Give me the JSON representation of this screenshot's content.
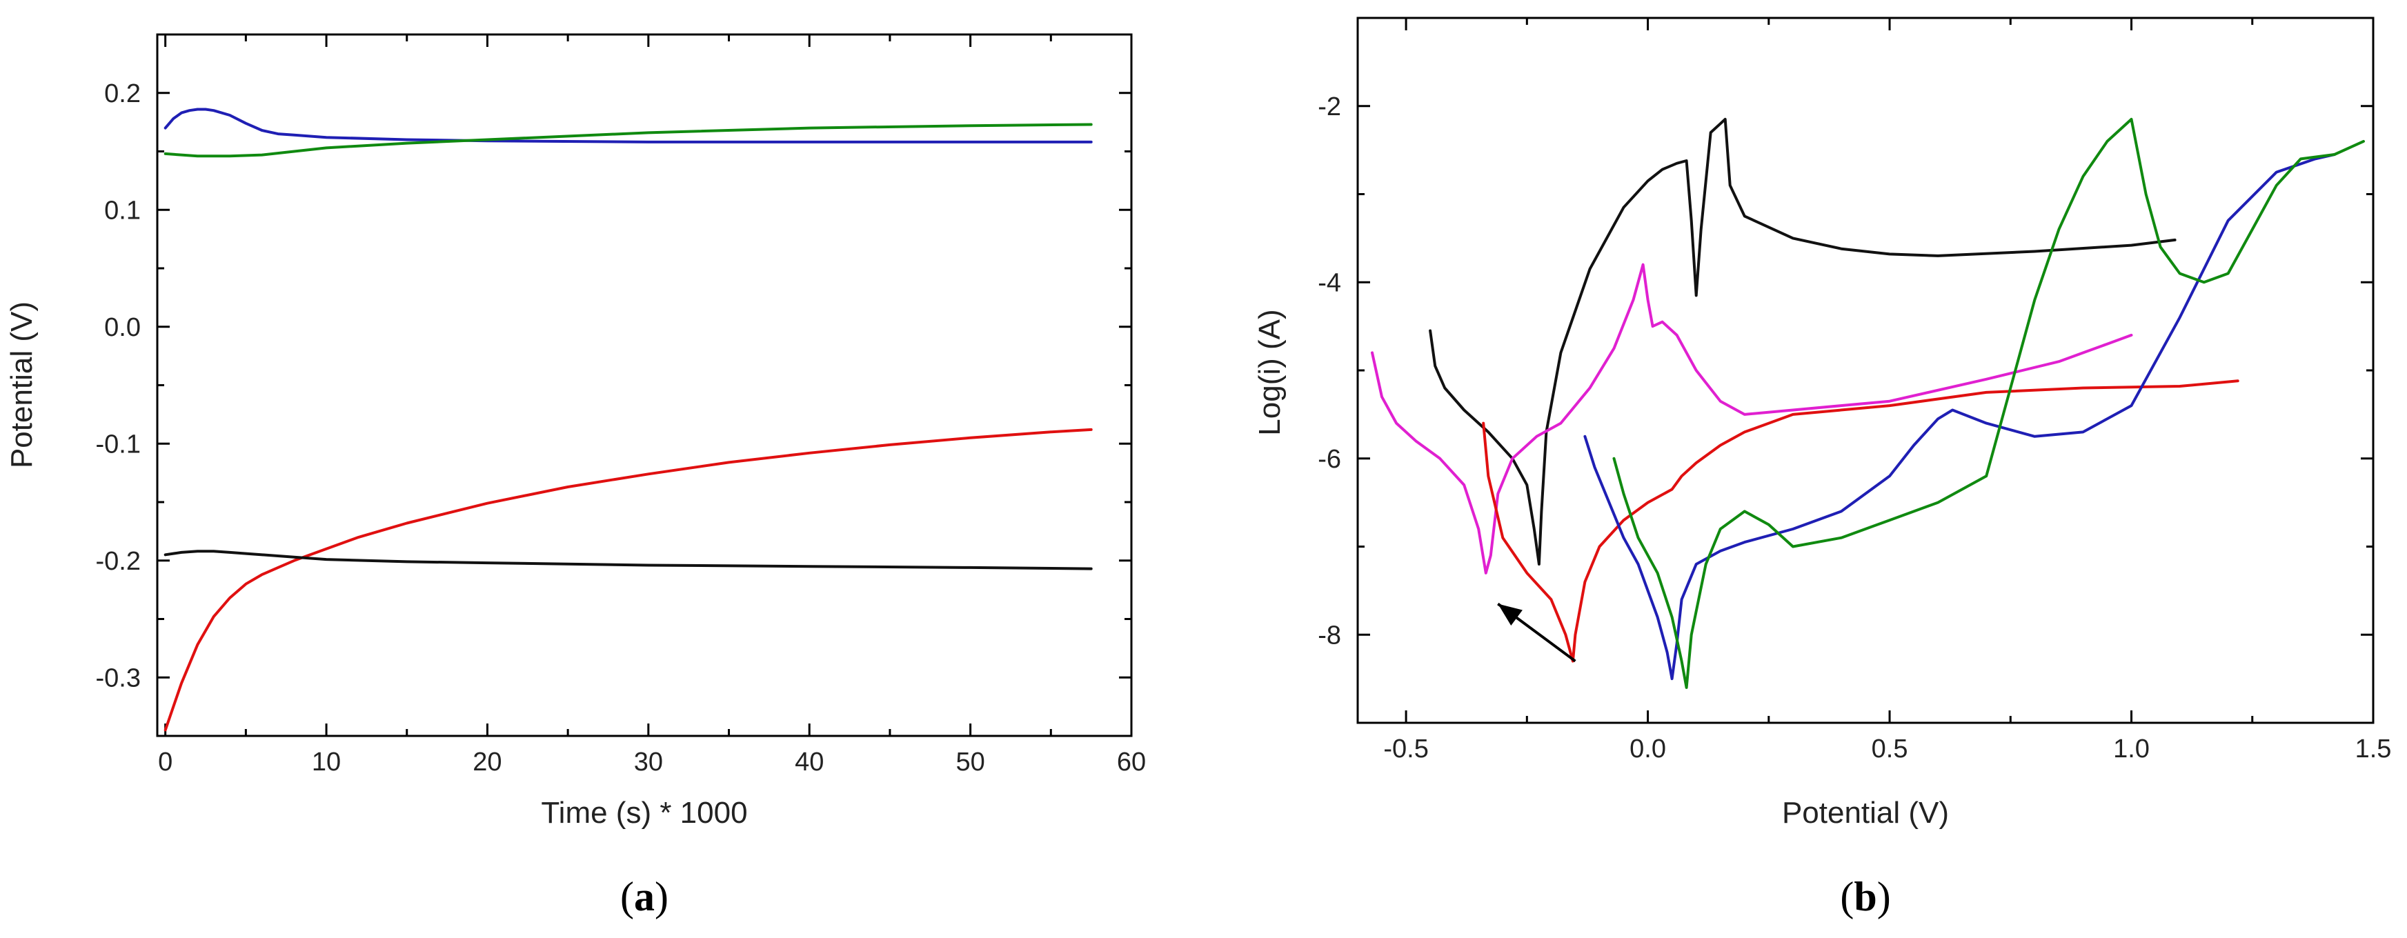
{
  "chart_data": [
    {
      "id": "a",
      "type": "line",
      "panel_label": "a",
      "xlabel": "Time (s) * 1000",
      "ylabel": "Potential (V)",
      "xlim": [
        -0.5,
        60
      ],
      "ylim": [
        -0.35,
        0.25
      ],
      "xticks": [
        0,
        10,
        20,
        30,
        40,
        50,
        60
      ],
      "xtick_labels": [
        "0",
        "10",
        "20",
        "30",
        "40",
        "50",
        "60"
      ],
      "yticks": [
        -0.3,
        -0.2,
        -0.1,
        0.0,
        0.1,
        0.2
      ],
      "ytick_labels": [
        "-0.3",
        "-0.2",
        "-0.1",
        "0.0",
        "0.1",
        "0.2"
      ],
      "series": [
        {
          "name": "blue",
          "color": "#1f1fb4",
          "x": [
            0,
            0.5,
            1,
            1.5,
            2,
            2.5,
            3,
            4,
            5,
            6,
            7,
            8,
            10,
            15,
            20,
            30,
            40,
            50,
            57.5
          ],
          "y": [
            0.17,
            0.178,
            0.183,
            0.185,
            0.186,
            0.186,
            0.185,
            0.181,
            0.174,
            0.168,
            0.165,
            0.164,
            0.162,
            0.16,
            0.159,
            0.158,
            0.158,
            0.158,
            0.158
          ]
        },
        {
          "name": "green",
          "color": "#108a10",
          "x": [
            0,
            2,
            4,
            6,
            8,
            10,
            15,
            20,
            30,
            40,
            50,
            57.5
          ],
          "y": [
            0.148,
            0.146,
            0.146,
            0.147,
            0.15,
            0.153,
            0.157,
            0.16,
            0.166,
            0.17,
            0.172,
            0.173
          ]
        },
        {
          "name": "red",
          "color": "#e01010",
          "x": [
            0,
            0.5,
            1,
            2,
            3,
            4,
            5,
            6,
            7,
            8,
            9,
            10,
            12,
            15,
            20,
            25,
            30,
            35,
            40,
            45,
            50,
            55,
            57.5
          ],
          "y": [
            -0.345,
            -0.325,
            -0.305,
            -0.272,
            -0.248,
            -0.232,
            -0.22,
            -0.212,
            -0.206,
            -0.2,
            -0.195,
            -0.19,
            -0.18,
            -0.168,
            -0.151,
            -0.137,
            -0.126,
            -0.116,
            -0.108,
            -0.101,
            -0.095,
            -0.09,
            -0.088
          ]
        },
        {
          "name": "black",
          "color": "#111111",
          "x": [
            0,
            1,
            2,
            3,
            4,
            5,
            8,
            10,
            15,
            20,
            30,
            40,
            50,
            57.5
          ],
          "y": [
            -0.195,
            -0.193,
            -0.192,
            -0.192,
            -0.193,
            -0.194,
            -0.197,
            -0.199,
            -0.201,
            -0.202,
            -0.204,
            -0.205,
            -0.206,
            -0.207
          ]
        }
      ]
    },
    {
      "id": "b",
      "type": "line",
      "panel_label": "b",
      "xlabel": "Potential (V)",
      "ylabel": "Log(i) (A)",
      "xlim": [
        -0.6,
        1.5
      ],
      "ylim": [
        -9,
        -1
      ],
      "xticks": [
        -0.5,
        0.0,
        0.5,
        1.0,
        1.5
      ],
      "xtick_labels": [
        "-0.5",
        "0.0",
        "0.5",
        "1.0",
        "1.5"
      ],
      "yticks": [
        -8,
        -6,
        -4,
        -2
      ],
      "ytick_labels": [
        "-8",
        "-6",
        "-4",
        "-2"
      ],
      "annotation_arrow": {
        "from": [
          -0.15,
          -8.3
        ],
        "to": [
          -0.31,
          -7.65
        ]
      },
      "series": [
        {
          "name": "black",
          "color": "#111111",
          "x": [
            -0.45,
            -0.44,
            -0.42,
            -0.38,
            -0.33,
            -0.28,
            -0.25,
            -0.235,
            -0.225,
            -0.22,
            -0.21,
            -0.18,
            -0.12,
            -0.05,
            0.0,
            0.03,
            0.06,
            0.08,
            0.09,
            0.1,
            0.11,
            0.13,
            0.15,
            0.16,
            0.17,
            0.2,
            0.3,
            0.4,
            0.5,
            0.6,
            0.8,
            1.0,
            1.09
          ],
          "y": [
            -4.55,
            -4.95,
            -5.2,
            -5.45,
            -5.7,
            -6.0,
            -6.3,
            -6.8,
            -7.2,
            -6.6,
            -5.7,
            -4.8,
            -3.85,
            -3.15,
            -2.85,
            -2.72,
            -2.65,
            -2.62,
            -3.3,
            -4.15,
            -3.4,
            -2.3,
            -2.2,
            -2.15,
            -2.9,
            -3.25,
            -3.5,
            -3.62,
            -3.68,
            -3.7,
            -3.65,
            -3.58,
            -3.52
          ]
        },
        {
          "name": "magenta",
          "color": "#e020d0",
          "x": [
            -0.57,
            -0.55,
            -0.52,
            -0.48,
            -0.43,
            -0.38,
            -0.35,
            -0.335,
            -0.325,
            -0.31,
            -0.28,
            -0.23,
            -0.18,
            -0.12,
            -0.07,
            -0.03,
            -0.01,
            0.0,
            0.01,
            0.03,
            0.06,
            0.1,
            0.15,
            0.2,
            0.3,
            0.5,
            0.7,
            0.85,
            0.95,
            1.0
          ],
          "y": [
            -4.8,
            -5.3,
            -5.6,
            -5.8,
            -6.0,
            -6.3,
            -6.8,
            -7.3,
            -7.1,
            -6.4,
            -6.0,
            -5.75,
            -5.6,
            -5.2,
            -4.75,
            -4.2,
            -3.8,
            -4.2,
            -4.5,
            -4.45,
            -4.6,
            -5.0,
            -5.35,
            -5.5,
            -5.45,
            -5.35,
            -5.1,
            -4.9,
            -4.7,
            -4.6
          ]
        },
        {
          "name": "red",
          "color": "#e01010",
          "x": [
            -0.34,
            -0.33,
            -0.3,
            -0.25,
            -0.2,
            -0.17,
            -0.155,
            -0.15,
            -0.13,
            -0.1,
            -0.05,
            0.0,
            0.05,
            0.07,
            0.1,
            0.15,
            0.2,
            0.3,
            0.5,
            0.7,
            0.9,
            1.1,
            1.22
          ],
          "y": [
            -5.6,
            -6.2,
            -6.9,
            -7.3,
            -7.6,
            -8.0,
            -8.3,
            -8.0,
            -7.4,
            -7.0,
            -6.7,
            -6.5,
            -6.35,
            -6.2,
            -6.05,
            -5.85,
            -5.7,
            -5.5,
            -5.4,
            -5.25,
            -5.2,
            -5.18,
            -5.12
          ]
        },
        {
          "name": "blue",
          "color": "#1f1fb4",
          "x": [
            -0.13,
            -0.11,
            -0.08,
            -0.05,
            -0.02,
            0.0,
            0.02,
            0.04,
            0.05,
            0.06,
            0.07,
            0.1,
            0.15,
            0.2,
            0.3,
            0.4,
            0.5,
            0.55,
            0.6,
            0.63,
            0.7,
            0.8,
            0.9,
            1.0,
            1.1,
            1.2,
            1.3,
            1.38,
            1.42
          ],
          "y": [
            -5.75,
            -6.1,
            -6.5,
            -6.9,
            -7.2,
            -7.5,
            -7.8,
            -8.2,
            -8.5,
            -8.1,
            -7.6,
            -7.2,
            -7.05,
            -6.95,
            -6.8,
            -6.6,
            -6.2,
            -5.85,
            -5.55,
            -5.45,
            -5.6,
            -5.75,
            -5.7,
            -5.4,
            -4.4,
            -3.3,
            -2.75,
            -2.6,
            -2.55
          ]
        },
        {
          "name": "green",
          "color": "#108a10",
          "x": [
            -0.07,
            -0.05,
            -0.02,
            0.02,
            0.05,
            0.07,
            0.08,
            0.09,
            0.12,
            0.15,
            0.2,
            0.25,
            0.3,
            0.4,
            0.5,
            0.6,
            0.7,
            0.75,
            0.8,
            0.85,
            0.9,
            0.95,
            1.0,
            1.03,
            1.06,
            1.1,
            1.15,
            1.2,
            1.25,
            1.3,
            1.35,
            1.42,
            1.48
          ],
          "y": [
            -6.0,
            -6.4,
            -6.9,
            -7.3,
            -7.8,
            -8.3,
            -8.6,
            -8.0,
            -7.2,
            -6.8,
            -6.6,
            -6.75,
            -7.0,
            -6.9,
            -6.7,
            -6.5,
            -6.2,
            -5.2,
            -4.2,
            -3.4,
            -2.8,
            -2.4,
            -2.15,
            -3.0,
            -3.6,
            -3.9,
            -4.0,
            -3.9,
            -3.4,
            -2.9,
            -2.6,
            -2.55,
            -2.4
          ]
        }
      ]
    }
  ]
}
